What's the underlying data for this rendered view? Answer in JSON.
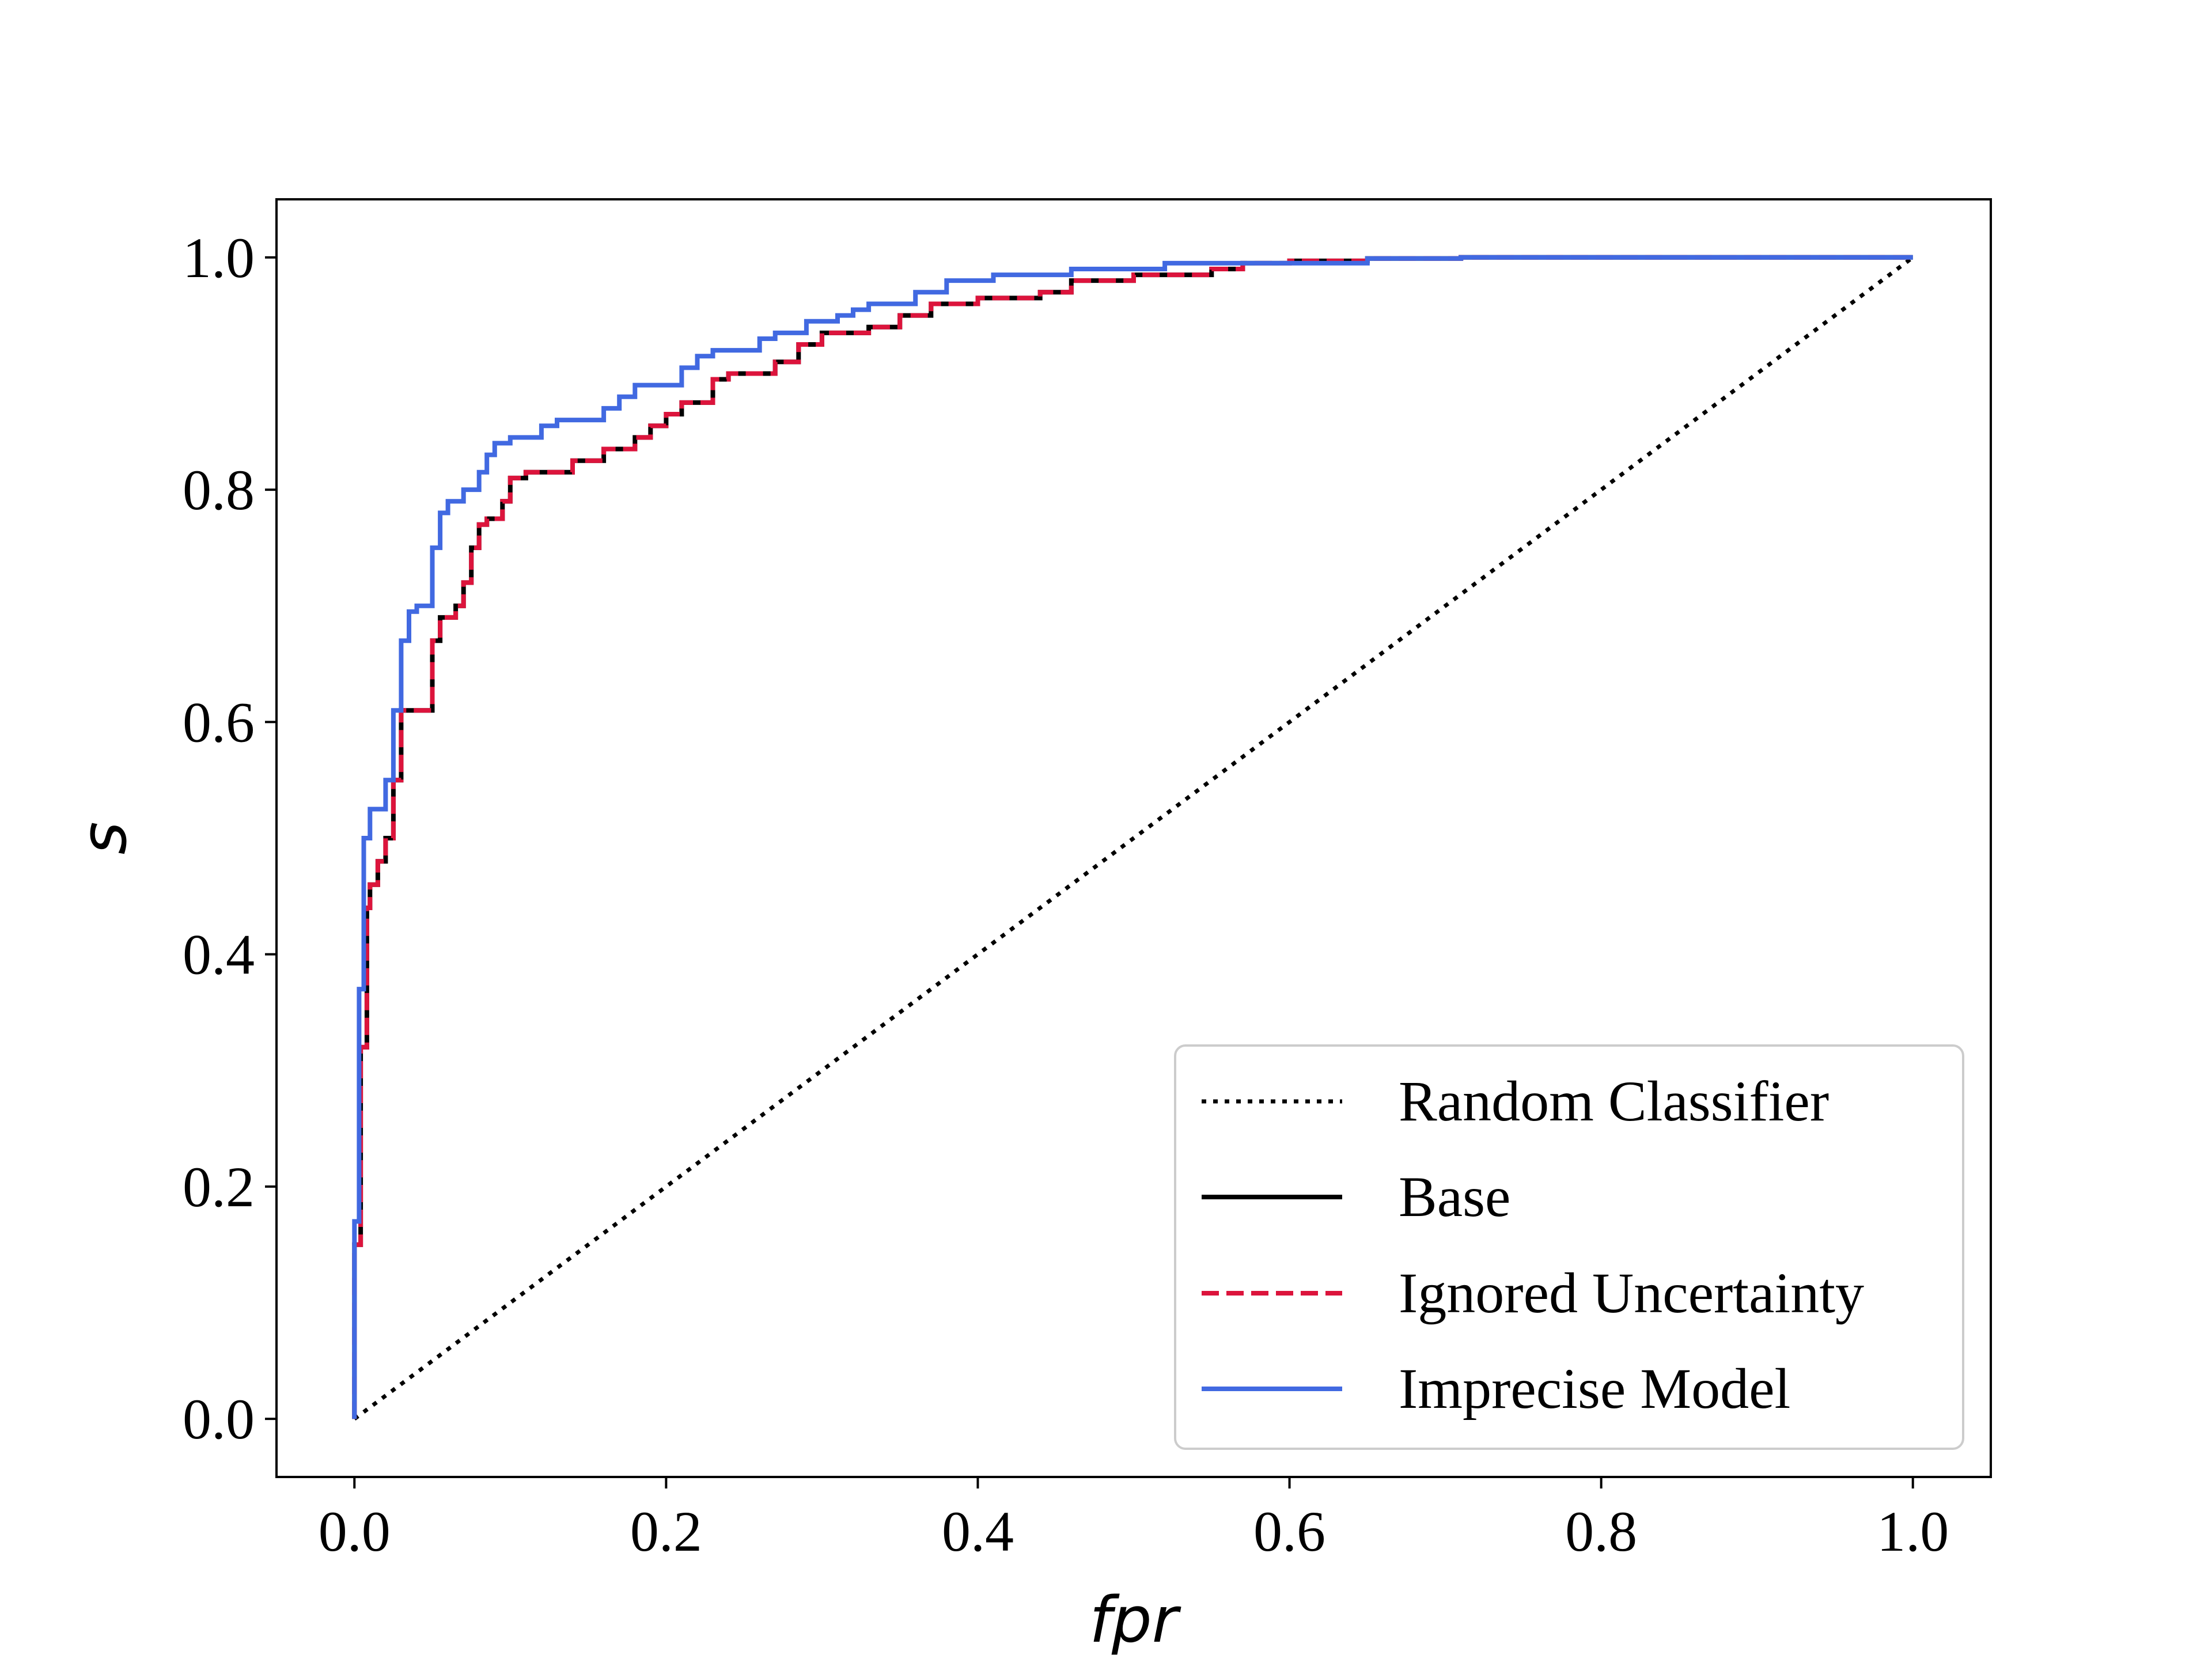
{
  "chart_data": {
    "type": "line",
    "xlabel": "fpr",
    "ylabel": "s",
    "xlim": [
      -0.05,
      1.05
    ],
    "ylim": [
      -0.05,
      1.05
    ],
    "x_ticks": [
      0.0,
      0.2,
      0.4,
      0.6,
      0.8,
      1.0
    ],
    "y_ticks": [
      0.0,
      0.2,
      0.4,
      0.6,
      0.8,
      1.0
    ],
    "x_tick_labels": [
      "0.0",
      "0.2",
      "0.4",
      "0.6",
      "0.8",
      "1.0"
    ],
    "y_tick_labels": [
      "0.0",
      "0.2",
      "0.4",
      "0.6",
      "0.8",
      "1.0"
    ],
    "grid": false,
    "legend_position": "lower-right",
    "series": [
      {
        "name": "Random Classifier",
        "color": "#000000",
        "style": "dotted",
        "x": [
          0.0,
          1.0
        ],
        "y": [
          0.0,
          1.0
        ]
      },
      {
        "name": "Base",
        "color": "#000000",
        "style": "solid",
        "x": [
          0.0,
          0.0,
          0.004,
          0.004,
          0.008,
          0.008,
          0.01,
          0.01,
          0.015,
          0.015,
          0.02,
          0.02,
          0.025,
          0.025,
          0.03,
          0.03,
          0.035,
          0.035,
          0.05,
          0.05,
          0.055,
          0.055,
          0.065,
          0.065,
          0.07,
          0.07,
          0.075,
          0.075,
          0.08,
          0.08,
          0.085,
          0.085,
          0.095,
          0.095,
          0.1,
          0.1,
          0.11,
          0.11,
          0.14,
          0.14,
          0.16,
          0.16,
          0.18,
          0.18,
          0.19,
          0.19,
          0.2,
          0.2,
          0.21,
          0.21,
          0.23,
          0.23,
          0.24,
          0.24,
          0.27,
          0.27,
          0.285,
          0.285,
          0.3,
          0.3,
          0.33,
          0.33,
          0.35,
          0.35,
          0.37,
          0.37,
          0.4,
          0.4,
          0.44,
          0.44,
          0.46,
          0.46,
          0.5,
          0.5,
          0.55,
          0.55,
          0.57,
          0.57,
          0.6,
          0.6,
          0.65,
          0.65,
          0.71,
          0.71,
          1.0
        ],
        "y": [
          0.0,
          0.15,
          0.15,
          0.32,
          0.32,
          0.44,
          0.44,
          0.46,
          0.46,
          0.48,
          0.48,
          0.5,
          0.5,
          0.55,
          0.55,
          0.61,
          0.61,
          0.61,
          0.61,
          0.67,
          0.67,
          0.69,
          0.69,
          0.7,
          0.7,
          0.72,
          0.72,
          0.75,
          0.75,
          0.77,
          0.77,
          0.775,
          0.775,
          0.79,
          0.79,
          0.81,
          0.81,
          0.815,
          0.815,
          0.825,
          0.825,
          0.835,
          0.835,
          0.845,
          0.845,
          0.855,
          0.855,
          0.865,
          0.865,
          0.875,
          0.875,
          0.895,
          0.895,
          0.9,
          0.9,
          0.91,
          0.91,
          0.925,
          0.925,
          0.935,
          0.935,
          0.94,
          0.94,
          0.95,
          0.95,
          0.96,
          0.96,
          0.965,
          0.965,
          0.97,
          0.97,
          0.98,
          0.98,
          0.985,
          0.985,
          0.99,
          0.99,
          0.995,
          0.995,
          0.997,
          0.997,
          0.999,
          0.999,
          1.0,
          1.0
        ]
      },
      {
        "name": "Ignored Uncertainty",
        "color": "#dc143c",
        "style": "dashed",
        "x": [
          0.0,
          0.0,
          0.004,
          0.004,
          0.008,
          0.008,
          0.01,
          0.01,
          0.015,
          0.015,
          0.02,
          0.02,
          0.025,
          0.025,
          0.03,
          0.03,
          0.035,
          0.035,
          0.05,
          0.05,
          0.055,
          0.055,
          0.065,
          0.065,
          0.07,
          0.07,
          0.075,
          0.075,
          0.08,
          0.08,
          0.085,
          0.085,
          0.095,
          0.095,
          0.1,
          0.1,
          0.11,
          0.11,
          0.14,
          0.14,
          0.16,
          0.16,
          0.18,
          0.18,
          0.19,
          0.19,
          0.2,
          0.2,
          0.21,
          0.21,
          0.23,
          0.23,
          0.24,
          0.24,
          0.27,
          0.27,
          0.285,
          0.285,
          0.3,
          0.3,
          0.33,
          0.33,
          0.35,
          0.35,
          0.37,
          0.37,
          0.4,
          0.4,
          0.44,
          0.44,
          0.46,
          0.46,
          0.5,
          0.5,
          0.55,
          0.55,
          0.57,
          0.57,
          0.6,
          0.6,
          0.65,
          0.65,
          0.71,
          0.71,
          1.0
        ],
        "y": [
          0.0,
          0.15,
          0.15,
          0.32,
          0.32,
          0.44,
          0.44,
          0.46,
          0.46,
          0.48,
          0.48,
          0.5,
          0.5,
          0.55,
          0.55,
          0.61,
          0.61,
          0.61,
          0.61,
          0.67,
          0.67,
          0.69,
          0.69,
          0.7,
          0.7,
          0.72,
          0.72,
          0.75,
          0.75,
          0.77,
          0.77,
          0.775,
          0.775,
          0.79,
          0.79,
          0.81,
          0.81,
          0.815,
          0.815,
          0.825,
          0.825,
          0.835,
          0.835,
          0.845,
          0.845,
          0.855,
          0.855,
          0.865,
          0.865,
          0.875,
          0.875,
          0.895,
          0.895,
          0.9,
          0.9,
          0.91,
          0.91,
          0.925,
          0.925,
          0.935,
          0.935,
          0.94,
          0.94,
          0.95,
          0.95,
          0.96,
          0.96,
          0.965,
          0.965,
          0.97,
          0.97,
          0.98,
          0.98,
          0.985,
          0.985,
          0.99,
          0.99,
          0.995,
          0.995,
          0.997,
          0.997,
          0.999,
          0.999,
          1.0,
          1.0
        ]
      },
      {
        "name": "Imprecise Model",
        "color": "#4169e1",
        "style": "solid",
        "x": [
          0.0,
          0.0,
          0.003,
          0.003,
          0.006,
          0.006,
          0.01,
          0.01,
          0.02,
          0.02,
          0.025,
          0.025,
          0.03,
          0.03,
          0.035,
          0.035,
          0.04,
          0.04,
          0.05,
          0.05,
          0.055,
          0.055,
          0.06,
          0.06,
          0.07,
          0.07,
          0.08,
          0.08,
          0.085,
          0.085,
          0.09,
          0.09,
          0.1,
          0.1,
          0.12,
          0.12,
          0.13,
          0.13,
          0.16,
          0.16,
          0.17,
          0.17,
          0.18,
          0.18,
          0.21,
          0.21,
          0.22,
          0.22,
          0.23,
          0.23,
          0.26,
          0.26,
          0.27,
          0.27,
          0.29,
          0.29,
          0.31,
          0.31,
          0.32,
          0.32,
          0.33,
          0.33,
          0.36,
          0.36,
          0.38,
          0.38,
          0.41,
          0.41,
          0.46,
          0.46,
          0.52,
          0.52,
          0.65,
          0.65,
          0.71,
          0.71,
          1.0
        ],
        "y": [
          0.0,
          0.17,
          0.17,
          0.37,
          0.37,
          0.5,
          0.5,
          0.525,
          0.525,
          0.55,
          0.55,
          0.61,
          0.61,
          0.67,
          0.67,
          0.695,
          0.695,
          0.7,
          0.7,
          0.75,
          0.75,
          0.78,
          0.78,
          0.79,
          0.79,
          0.8,
          0.8,
          0.815,
          0.815,
          0.83,
          0.83,
          0.84,
          0.84,
          0.845,
          0.845,
          0.855,
          0.855,
          0.86,
          0.86,
          0.87,
          0.87,
          0.88,
          0.88,
          0.89,
          0.89,
          0.905,
          0.905,
          0.915,
          0.915,
          0.92,
          0.92,
          0.93,
          0.93,
          0.935,
          0.935,
          0.945,
          0.945,
          0.95,
          0.95,
          0.955,
          0.955,
          0.96,
          0.96,
          0.97,
          0.97,
          0.98,
          0.98,
          0.985,
          0.985,
          0.99,
          0.99,
          0.995,
          0.995,
          0.999,
          0.999,
          1.0,
          1.0
        ]
      }
    ]
  }
}
